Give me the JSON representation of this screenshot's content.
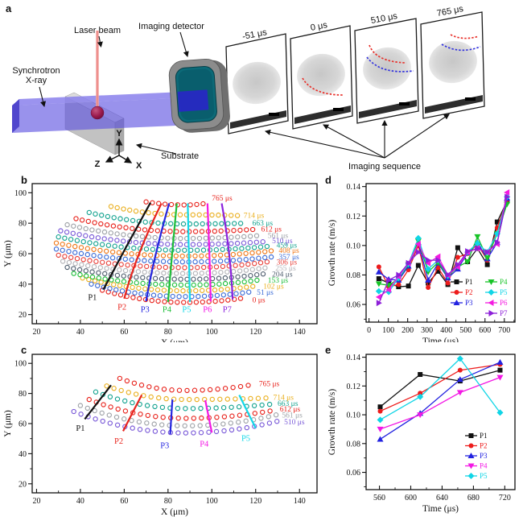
{
  "panel_a": {
    "label": "a",
    "labels": {
      "laser_beam": "Laser beam",
      "imaging_detector": "Imaging detector",
      "synchrotron_1": "Synchrotron",
      "synchrotron_2": "X-ray",
      "substrate": "Substrate",
      "imaging_sequence": "Imaging sequence",
      "axis_x": "X",
      "axis_y": "Y",
      "axis_z": "Z"
    },
    "frames": [
      {
        "label": "-51 μs",
        "curves": []
      },
      {
        "label": "0 μs",
        "curves": [
          "red"
        ]
      },
      {
        "label": "510 μs",
        "curves": [
          "red",
          "blue"
        ]
      },
      {
        "label": "765 μs",
        "curves": [
          "red",
          "blue"
        ]
      }
    ],
    "colors": {
      "xray_beam": "#5a4fe0",
      "laser": "#f2a3a0",
      "melt_sphere": "#8c1045",
      "detector_body": "#8c8c8c",
      "detector_screen": "#0c6a78",
      "substrate_gray": "#c2c2c2"
    }
  },
  "panel_b": {
    "label": "b",
    "chart_data": {
      "type": "scatter",
      "xlabel": "X (μm)",
      "ylabel": "Y (μm)",
      "xlim": [
        20,
        140
      ],
      "ylim": [
        20,
        100
      ],
      "point_spacing": 2.9,
      "contours": [
        {
          "t": 0,
          "label": "0 μs",
          "color": "#e8241d",
          "y0": 28,
          "xl": 50,
          "yl": 36,
          "xr": 115,
          "yr": 31,
          "lx": 118.5,
          "ly": 29.5
        },
        {
          "t": 51,
          "label": "51 μs",
          "color": "#3b6bd6",
          "y0": 31.8,
          "xl": 45,
          "yl": 40,
          "xr": 118,
          "yr": 35,
          "lx": 120.5,
          "ly": 34.5
        },
        {
          "t": 102,
          "label": "102 μs",
          "color": "#eab020",
          "y0": 35.6,
          "xl": 41,
          "yl": 44,
          "xr": 121,
          "yr": 39,
          "lx": 123.5,
          "ly": 38.5
        },
        {
          "t": 153,
          "label": "153 μs",
          "color": "#1fbf3a",
          "y0": 39.4,
          "xl": 37,
          "yl": 47,
          "xr": 123,
          "yr": 43,
          "lx": 125.5,
          "ly": 42.5
        },
        {
          "t": 204,
          "label": "204 μs",
          "color": "#4f5d6e",
          "y0": 43.2,
          "xl": 34,
          "yl": 51,
          "xr": 125,
          "yr": 47,
          "lx": 127.5,
          "ly": 46.5
        },
        {
          "t": 255,
          "label": "255 μs",
          "color": "#b3b3b8",
          "y0": 47,
          "xl": 32,
          "yl": 55,
          "xr": 126,
          "yr": 51,
          "lx": 129,
          "ly": 50.5
        },
        {
          "t": 306,
          "label": "306 μs",
          "color": "#e8403a",
          "y0": 50.8,
          "xl": 30,
          "yl": 59,
          "xr": 127,
          "yr": 55,
          "lx": 129.5,
          "ly": 54.5
        },
        {
          "t": 357,
          "label": "357 μs",
          "color": "#3b6bd6",
          "y0": 54.6,
          "xl": 29,
          "yl": 63,
          "xr": 128,
          "yr": 58,
          "lx": 130.5,
          "ly": 58
        },
        {
          "t": 408,
          "label": "408 μs",
          "color": "#f07818",
          "y0": 58.4,
          "xl": 29,
          "yl": 67,
          "xr": 128,
          "yr": 62,
          "lx": 130.5,
          "ly": 62
        },
        {
          "t": 459,
          "label": "459 μs",
          "color": "#14a390",
          "y0": 62.2,
          "xl": 30,
          "yl": 71,
          "xr": 127,
          "yr": 65,
          "lx": 129.5,
          "ly": 65.5
        },
        {
          "t": 510,
          "label": "510 μs",
          "color": "#7a5ad8",
          "y0": 66,
          "xl": 31,
          "yl": 75,
          "xr": 125,
          "yr": 68,
          "lx": 127.5,
          "ly": 68.5
        },
        {
          "t": 561,
          "label": "561 μs",
          "color": "#9fa3a8",
          "y0": 70,
          "xl": 34,
          "yl": 79,
          "xr": 123,
          "yr": 72,
          "lx": 125.5,
          "ly": 72
        },
        {
          "t": 612,
          "label": "612 μs",
          "color": "#e8241d",
          "y0": 74.5,
          "xl": 38,
          "yl": 83,
          "xr": 120,
          "yr": 76,
          "lx": 122.5,
          "ly": 76
        },
        {
          "t": 663,
          "label": "663 μs",
          "color": "#14a390",
          "y0": 79.5,
          "xl": 44,
          "yl": 87,
          "xr": 116,
          "yr": 80,
          "lx": 118.5,
          "ly": 80
        },
        {
          "t": 714,
          "label": "714 μs",
          "color": "#eab020",
          "y0": 85.5,
          "xl": 54,
          "yl": 91,
          "xr": 112,
          "yr": 85,
          "lx": 114.5,
          "ly": 85
        },
        {
          "t": 765,
          "label": "765 μs",
          "color": "#e8241d",
          "y0": 92,
          "xl": 70,
          "yl": 94,
          "xr": 97,
          "yr": 93,
          "lx": 100,
          "ly": 96.5
        }
      ],
      "paths": [
        {
          "name": "P1",
          "color": "#111111",
          "x1": 50.5,
          "y1": 36.5,
          "cx": 61,
          "cy": 65,
          "x2": 72,
          "y2": 93.5,
          "lx": 45.5,
          "ly": 31.5
        },
        {
          "name": "P2",
          "color": "#e8241d",
          "x1": 60,
          "y1": 30.5,
          "cx": 65,
          "cy": 58,
          "x2": 77,
          "y2": 93,
          "lx": 59,
          "ly": 25
        },
        {
          "name": "P3",
          "color": "#2525e0",
          "x1": 70,
          "y1": 28.8,
          "cx": 73,
          "cy": 55,
          "x2": 80.5,
          "y2": 93,
          "lx": 69.5,
          "ly": 23.5
        },
        {
          "name": "P4",
          "color": "#1fbf3a",
          "x1": 80,
          "y1": 28.3,
          "cx": 81.5,
          "cy": 55,
          "x2": 84,
          "y2": 93,
          "lx": 79.5,
          "ly": 23.5
        },
        {
          "name": "P5",
          "color": "#12d8e8",
          "x1": 90,
          "y1": 28.3,
          "cx": 89.5,
          "cy": 60,
          "x2": 89,
          "y2": 93,
          "lx": 88.5,
          "ly": 23.5
        },
        {
          "name": "P6",
          "color": "#f318e4",
          "x1": 99.5,
          "y1": 28.6,
          "cx": 99,
          "cy": 60,
          "x2": 98,
          "y2": 93,
          "lx": 98,
          "ly": 23.5
        },
        {
          "name": "P7",
          "color": "#8b22dd",
          "x1": 109.5,
          "y1": 30,
          "cx": 108.5,
          "cy": 62,
          "x2": 104.5,
          "y2": 93,
          "lx": 107,
          "ly": 23.5
        }
      ]
    }
  },
  "panel_c": {
    "label": "c",
    "chart_data": {
      "type": "scatter",
      "xlabel": "X (μm)",
      "ylabel": "Y (μm)",
      "xlim": [
        20,
        140
      ],
      "ylim": [
        20,
        100
      ],
      "point_spacing": 3.5,
      "contours": [
        {
          "t": 510,
          "label": "510 μs",
          "color": "#7a5ad8",
          "y0": 53.8,
          "xl": 37,
          "yl": 68,
          "xr": 131,
          "yr": 62,
          "lx": 133,
          "ly": 61
        },
        {
          "t": 561,
          "label": "561 μs",
          "color": "#9fa3a8",
          "y0": 58.5,
          "xl": 40,
          "yl": 72,
          "xr": 130,
          "yr": 66,
          "lx": 132,
          "ly": 65.5
        },
        {
          "t": 612,
          "label": "612 μs",
          "color": "#e8241d",
          "y0": 63.5,
          "xl": 44,
          "yl": 76,
          "xr": 129,
          "yr": 69,
          "lx": 131,
          "ly": 69.5
        },
        {
          "t": 663,
          "label": "663 μs",
          "color": "#14a390",
          "y0": 70,
          "xl": 47,
          "yl": 81,
          "xr": 128,
          "yr": 73,
          "lx": 130,
          "ly": 73.5
        },
        {
          "t": 714,
          "label": "714 μs",
          "color": "#eab020",
          "y0": 76,
          "xl": 52,
          "yl": 85,
          "xr": 126,
          "yr": 77,
          "lx": 128,
          "ly": 77.5
        },
        {
          "t": 765,
          "label": "765 μs",
          "color": "#e8241d",
          "y0": 82,
          "xl": 58,
          "yl": 90,
          "xr": 119,
          "yr": 86,
          "lx": 121.5,
          "ly": 86.5
        }
      ],
      "paths": [
        {
          "name": "P1",
          "color": "#111111",
          "x1": 42,
          "y1": 63,
          "cx": 48,
          "cy": 74.2,
          "x2": 54,
          "y2": 85.5,
          "lx": 40,
          "ly": 57
        },
        {
          "name": "P2",
          "color": "#e8241d",
          "x1": 59.5,
          "y1": 55,
          "cx": 63.7,
          "cy": 67,
          "x2": 68,
          "y2": 79,
          "lx": 57.5,
          "ly": 48.5
        },
        {
          "name": "P3",
          "color": "#2525e0",
          "x1": 81,
          "y1": 53,
          "cx": 81.5,
          "cy": 64.5,
          "x2": 82,
          "y2": 76,
          "lx": 78.5,
          "ly": 45.5
        },
        {
          "name": "P4",
          "color": "#f318e4",
          "x1": 100,
          "y1": 54,
          "cx": 98.5,
          "cy": 64.7,
          "x2": 97,
          "y2": 75.5,
          "lx": 96.5,
          "ly": 46.5
        },
        {
          "name": "P5",
          "color": "#12d8e8",
          "x1": 120,
          "y1": 57,
          "cx": 116.2,
          "cy": 68,
          "x2": 112.5,
          "y2": 79,
          "lx": 115.5,
          "ly": 50.5
        }
      ]
    }
  },
  "panel_d": {
    "label": "d",
    "chart_data": {
      "type": "line",
      "xlabel": "Time (μs)",
      "ylabel": "Growth rate (m/s)",
      "xlim": [
        0,
        750
      ],
      "ylim": [
        0.05,
        0.14
      ],
      "legend_position": "lower right",
      "x": [
        51,
        102,
        153,
        204,
        255,
        306,
        357,
        408,
        459,
        510,
        561,
        612,
        663,
        714
      ],
      "series": [
        {
          "name": "P1",
          "color": "#111111",
          "marker": "square",
          "values": [
            0.0775,
            0.0745,
            0.072,
            0.0725,
            0.0865,
            0.0745,
            0.0825,
            0.0735,
            0.0985,
            0.089,
            0.098,
            0.087,
            0.116,
            0.13
          ]
        },
        {
          "name": "P2",
          "color": "#ed1c1c",
          "marker": "circle",
          "values": [
            0.0855,
            0.072,
            0.0735,
            0.0835,
            0.1,
            0.0715,
            0.085,
            0.0745,
            0.092,
            0.0945,
            0.101,
            0.09,
            0.112,
            0.131
          ]
        },
        {
          "name": "P3",
          "color": "#2222e0",
          "marker": "triangle-up",
          "values": [
            0.082,
            0.077,
            0.0765,
            0.086,
            0.102,
            0.0765,
            0.088,
            0.078,
            0.084,
            0.095,
            0.102,
            0.091,
            0.102,
            0.132
          ]
        },
        {
          "name": "P4",
          "color": "#17c427",
          "marker": "triangle-down",
          "values": [
            0.074,
            0.073,
            0.0775,
            0.087,
            0.103,
            0.082,
            0.0885,
            0.079,
            0.0855,
            0.089,
            0.106,
            0.0915,
            0.108,
            0.128
          ]
        },
        {
          "name": "P5",
          "color": "#10d5e6",
          "marker": "diamond",
          "values": [
            0.069,
            0.0685,
            0.078,
            0.0875,
            0.105,
            0.084,
            0.09,
            0.0795,
            0.086,
            0.0955,
            0.1015,
            0.0955,
            0.108,
            0.133
          ]
        },
        {
          "name": "P6",
          "color": "#f41ae0",
          "marker": "triangle-left",
          "values": [
            0.065,
            0.07,
            0.079,
            0.088,
            0.101,
            0.088,
            0.0925,
            0.08,
            0.0855,
            0.0955,
            0.098,
            0.0955,
            0.101,
            0.136
          ]
        },
        {
          "name": "P7",
          "color": "#8d1fd8",
          "marker": "triangle-right",
          "values": [
            0.061,
            0.0765,
            0.08,
            0.088,
            0.0955,
            0.09,
            0.09,
            0.08,
            0.087,
            0.096,
            0.098,
            0.0955,
            0.102,
            0.133
          ]
        }
      ]
    }
  },
  "panel_e": {
    "label": "e",
    "chart_data": {
      "type": "line",
      "xlabel": "Time (μs)",
      "ylabel": "Growth rate (m/s)",
      "xlim": [
        545,
        730
      ],
      "ylim": [
        0.05,
        0.14
      ],
      "legend_position": "right",
      "x": [
        561,
        612,
        663,
        714
      ],
      "series": [
        {
          "name": "P1",
          "color": "#111111",
          "marker": "square",
          "values": [
            0.1055,
            0.128,
            0.1235,
            0.131
          ]
        },
        {
          "name": "P2",
          "color": "#ed1c1c",
          "marker": "circle",
          "values": [
            0.1025,
            0.115,
            0.131,
            0.135
          ]
        },
        {
          "name": "P3",
          "color": "#2222e0",
          "marker": "triangle-up",
          "values": [
            0.083,
            0.101,
            0.1245,
            0.1365
          ]
        },
        {
          "name": "P4",
          "color": "#f318e4",
          "marker": "triangle-down",
          "values": [
            0.09,
            0.1,
            0.1155,
            0.126
          ]
        },
        {
          "name": "P5",
          "color": "#10d5e6",
          "marker": "diamond",
          "values": [
            0.0965,
            0.1125,
            0.139,
            0.1015
          ]
        }
      ]
    }
  }
}
